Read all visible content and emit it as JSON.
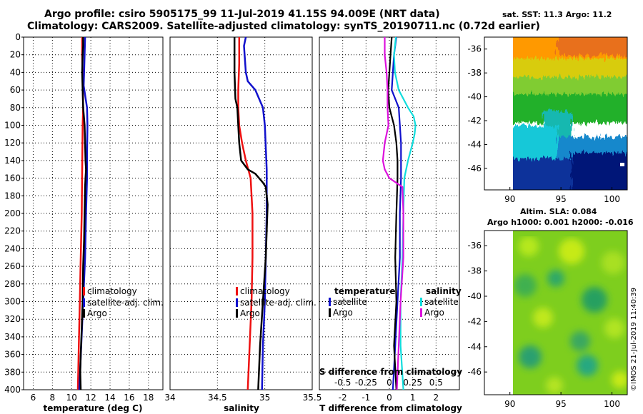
{
  "header": {
    "title_line1": "Argo profile: csiro 5905175_99 11-Jul-2019 41.15S 94.009E (NRT data)",
    "title_line2": "Climatology: CARS2009. Satellite-adjusted climatology: synTS_20190711.nc (0.72d earlier)"
  },
  "colors": {
    "climatology": "#ee1111",
    "sat_adj": "#1111cc",
    "argo": "#000000",
    "t_sat": "#1111cc",
    "t_argo": "#000000",
    "s_sat": "#11dddd",
    "s_argo": "#dd11dd"
  },
  "depth_axis": {
    "range": [
      0,
      400
    ],
    "ticks": [
      "0",
      "20",
      "40",
      "60",
      "80",
      "100",
      "120",
      "140",
      "160",
      "180",
      "200",
      "220",
      "240",
      "260",
      "280",
      "300",
      "320",
      "340",
      "360",
      "380",
      "400"
    ]
  },
  "chart_data": [
    {
      "id": "temperature",
      "type": "line",
      "xlabel": "temperature (deg C)",
      "xlim": [
        5,
        19.5
      ],
      "xticks": [
        "6",
        "8",
        "10",
        "12",
        "14",
        "16",
        "18"
      ],
      "xtick_values": [
        6,
        8,
        10,
        12,
        14,
        16,
        18
      ],
      "ylim": [
        0,
        400
      ],
      "legend": {
        "position": "lower-right",
        "labels": [
          "climatology",
          "satellite-adj. clim.",
          "Argo"
        ]
      },
      "series": [
        {
          "name": "climatology",
          "color_key": "climatology",
          "depth": [
            0,
            20,
            50,
            80,
            100,
            150,
            200,
            250,
            300,
            350,
            400
          ],
          "values": [
            11.1,
            11.1,
            11.15,
            11.2,
            11.15,
            11.1,
            11.05,
            10.95,
            10.85,
            10.75,
            10.65
          ]
        },
        {
          "name": "satellite-adj. clim.",
          "color_key": "sat_adj",
          "depth": [
            0,
            20,
            40,
            55,
            80,
            100,
            130,
            160,
            200,
            250,
            300,
            350,
            400
          ],
          "values": [
            11.4,
            11.35,
            11.3,
            11.25,
            11.6,
            11.65,
            11.6,
            11.6,
            11.5,
            11.4,
            11.2,
            11.0,
            10.8
          ]
        },
        {
          "name": "Argo",
          "color_key": "argo",
          "depth": [
            0,
            10,
            20,
            40,
            60,
            80,
            100,
            120,
            140,
            150,
            160,
            170,
            200,
            230,
            260,
            300,
            330,
            360,
            380,
            400
          ],
          "values": [
            11.2,
            11.2,
            11.15,
            11.1,
            11.15,
            11.2,
            11.35,
            11.4,
            11.45,
            11.5,
            11.45,
            11.4,
            11.35,
            11.3,
            11.2,
            11.15,
            11.05,
            10.95,
            10.9,
            10.95
          ]
        }
      ]
    },
    {
      "id": "salinity",
      "type": "line",
      "xlabel": "salinity",
      "xlim": [
        34,
        35.5
      ],
      "xticks": [
        "34",
        "34.5",
        "35",
        "35.5"
      ],
      "xtick_values": [
        34,
        34.5,
        35,
        35.5
      ],
      "ylim": [
        0,
        400
      ],
      "legend": {
        "position": "lower-right",
        "labels": [
          "climatology",
          "satellite-adj. clim.",
          "Argo"
        ]
      },
      "series": [
        {
          "name": "climatology",
          "color_key": "climatology",
          "depth": [
            0,
            30,
            60,
            80,
            100,
            120,
            140,
            160,
            180,
            200,
            250,
            300,
            350,
            400
          ],
          "values": [
            34.73,
            34.73,
            34.72,
            34.72,
            34.73,
            34.76,
            34.8,
            34.85,
            34.86,
            34.87,
            34.87,
            34.86,
            34.84,
            34.82
          ]
        },
        {
          "name": "satellite-adj. clim.",
          "color_key": "sat_adj",
          "depth": [
            0,
            10,
            25,
            40,
            50,
            60,
            80,
            100,
            150,
            200,
            250,
            300,
            350,
            400
          ],
          "values": [
            34.8,
            34.78,
            34.79,
            34.8,
            34.82,
            34.9,
            34.98,
            35.0,
            35.02,
            35.02,
            35.01,
            35.0,
            34.98,
            34.97
          ]
        },
        {
          "name": "Argo",
          "color_key": "argo",
          "depth": [
            0,
            40,
            70,
            80,
            100,
            120,
            140,
            150,
            155,
            165,
            170,
            180,
            190,
            220,
            250,
            300,
            350,
            400
          ],
          "values": [
            34.68,
            34.68,
            34.69,
            34.71,
            34.72,
            34.73,
            34.75,
            34.82,
            34.9,
            34.98,
            35.01,
            35.02,
            35.03,
            35.02,
            35.01,
            34.98,
            34.95,
            34.93
          ]
        }
      ]
    },
    {
      "id": "difference",
      "type": "line",
      "xlabel": "T difference from climatology",
      "xlabel_top": "S difference from climatology",
      "xlim": [
        -3,
        3
      ],
      "xticks": [
        "-2",
        "-1",
        "0",
        "1",
        "2"
      ],
      "xtick_values": [
        -2,
        -1,
        0,
        1,
        2
      ],
      "s_ticks": [
        "-0.5",
        "-0.25",
        "0",
        "0.25",
        "0.5"
      ],
      "s_tick_values": [
        -0.5,
        -0.25,
        0,
        0.25,
        0.5
      ],
      "ylim": [
        0,
        400
      ],
      "legend_temperature": {
        "title": "temperature",
        "labels": [
          "satellite",
          "Argo"
        ]
      },
      "legend_salinity": {
        "title": "salinity",
        "labels": [
          "satellite",
          "Argo"
        ]
      },
      "series": [
        {
          "name": "T satellite",
          "color_key": "t_sat",
          "depth": [
            0,
            20,
            40,
            60,
            80,
            120,
            160,
            200,
            250,
            300,
            350,
            400
          ],
          "values": [
            0.3,
            0.2,
            0.15,
            0.1,
            0.4,
            0.5,
            0.5,
            0.45,
            0.45,
            0.35,
            0.25,
            0.15
          ]
        },
        {
          "name": "T Argo",
          "color_key": "t_argo",
          "depth": [
            0,
            20,
            40,
            60,
            80,
            100,
            120,
            140,
            160,
            200,
            250,
            300,
            350,
            400
          ],
          "values": [
            0.1,
            0.05,
            0.0,
            -0.05,
            0.0,
            0.2,
            0.3,
            0.35,
            0.35,
            0.3,
            0.25,
            0.3,
            0.2,
            0.3
          ]
        },
        {
          "name": "S satellite",
          "color_key": "s_sat",
          "depth": [
            0,
            20,
            40,
            60,
            80,
            90,
            100,
            110,
            120,
            140,
            160,
            200,
            250,
            300,
            350,
            400
          ],
          "values": [
            0.07,
            0.05,
            0.06,
            0.1,
            0.2,
            0.26,
            0.28,
            0.27,
            0.25,
            0.2,
            0.16,
            0.15,
            0.14,
            0.12,
            0.12,
            0.15
          ]
        },
        {
          "name": "S Argo",
          "color_key": "s_argo",
          "depth": [
            0,
            20,
            40,
            60,
            80,
            100,
            120,
            140,
            150,
            160,
            170,
            200,
            250,
            300,
            350,
            400
          ],
          "values": [
            -0.05,
            -0.05,
            -0.03,
            -0.02,
            -0.02,
            -0.01,
            -0.05,
            -0.07,
            -0.05,
            0.0,
            0.14,
            0.15,
            0.15,
            0.12,
            0.1,
            0.08
          ]
        }
      ]
    },
    {
      "id": "sst_map",
      "type": "heatmap",
      "title": "sat. SST: 11.3 Argo: 11.2",
      "xticks": [
        "90",
        "95",
        "100"
      ],
      "xtick_values": [
        90,
        95,
        100
      ],
      "xlim": [
        87.5,
        101.5
      ],
      "yticks": [
        "-36",
        "-38",
        "-40",
        "-42",
        "-44",
        "-46"
      ],
      "ytick_values": [
        -36,
        -38,
        -40,
        -42,
        -44,
        -46
      ],
      "ylim": [
        -35,
        -47.8
      ],
      "data_lon_range": [
        90,
        101.5
      ]
    },
    {
      "id": "sla_map",
      "type": "heatmap",
      "title_line1": "Altim. SLA: 0.084",
      "title_line2": "Argo h1000: 0.001 h2000: -0.016",
      "xticks": [
        "90",
        "95",
        "100"
      ],
      "xtick_values": [
        90,
        95,
        100
      ],
      "xlim": [
        87.5,
        101.5
      ],
      "yticks": [
        "-36",
        "-38",
        "-40",
        "-42",
        "-44",
        "-46"
      ],
      "ytick_values": [
        -36,
        -38,
        -40,
        -42,
        -44,
        -46
      ],
      "ylim": [
        -34.8,
        -47.8
      ],
      "data_lon_range": [
        90,
        101.5
      ]
    }
  ],
  "footer": {
    "credit": "©IMOS 21-Jul-2019 11:40:39"
  }
}
